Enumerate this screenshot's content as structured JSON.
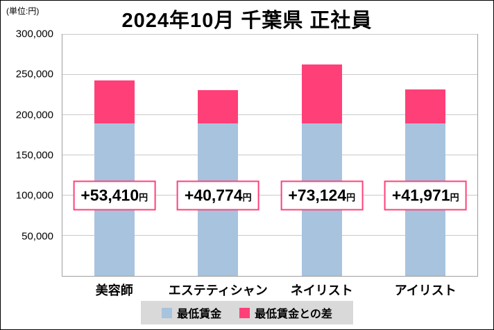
{
  "unit_label": "(単位:円)",
  "title": "2024年10月 千葉県 正社員",
  "chart_data": {
    "type": "bar",
    "stacked": true,
    "title": "2024年10月 千葉県 正社員",
    "categories": [
      "美容師",
      "エステティシャン",
      "ネイリスト",
      "アイリスト"
    ],
    "series": [
      {
        "name": "最低賃金",
        "color": "#a7c3de",
        "values": [
          190000,
          190000,
          190000,
          190000
        ]
      },
      {
        "name": "最低賃金との差",
        "color": "#ff4078",
        "values": [
          53410,
          40774,
          73124,
          41971
        ]
      }
    ],
    "totals": [
      243410,
      230774,
      263124,
      231971
    ],
    "diff_labels": [
      {
        "amount": "+53,410",
        "unit": "円"
      },
      {
        "amount": "+40,774",
        "unit": "円"
      },
      {
        "amount": "+73,124",
        "unit": "円"
      },
      {
        "amount": "+41,971",
        "unit": "円"
      }
    ],
    "diff_label_center_value": 100000,
    "ylim": [
      0,
      300000
    ],
    "yticks": [
      {
        "label": "50,000",
        "value": 50000
      },
      {
        "label": "100,000",
        "value": 100000
      },
      {
        "label": "150,000",
        "value": 150000
      },
      {
        "label": "200,000",
        "value": 200000
      },
      {
        "label": "250,000",
        "value": 250000
      },
      {
        "label": "300,000",
        "value": 300000
      }
    ],
    "grid": true,
    "legend_position": "bottom"
  },
  "legend": {
    "items": [
      {
        "label": "最低賃金",
        "color": "#a7c3de"
      },
      {
        "label": "最低賃金との差",
        "color": "#ff4078"
      }
    ]
  }
}
